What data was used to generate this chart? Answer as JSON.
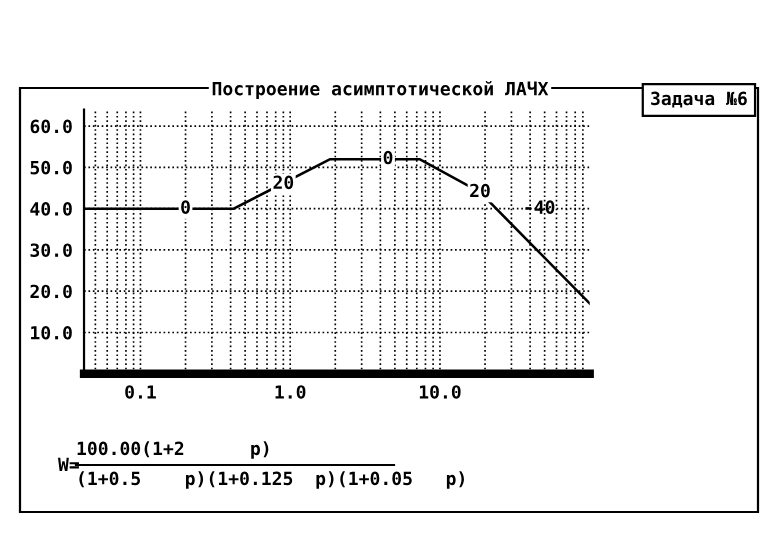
{
  "chart_data": {
    "type": "line",
    "title": "Построение асимптотической ЛАЧХ",
    "subtitle": "Задача №6",
    "x": [
      0.042,
      0.42,
      1.85,
      7.3,
      18.5,
      100
    ],
    "series": [
      {
        "color": "#000000",
        "values": [
          40,
          40,
          52,
          52,
          44,
          17
        ]
      }
    ],
    "log": "x",
    "xlim": [
      0.042,
      100
    ],
    "xticks": [
      {
        "value": 0.1,
        "label": "0.1"
      },
      {
        "value": 1,
        "label": "1.0"
      },
      {
        "value": 10,
        "label": "10.0"
      }
    ],
    "ylim": [
      0,
      64
    ],
    "yticks": [
      {
        "value": 10,
        "label": "10.0"
      },
      {
        "value": 20,
        "label": "20.0"
      },
      {
        "value": 30,
        "label": "30.0"
      },
      {
        "value": 40,
        "label": "40.0"
      },
      {
        "value": 50,
        "label": "50.0"
      },
      {
        "value": 60,
        "label": "60.0"
      }
    ],
    "grid": true,
    "marker": "none",
    "line_style": "solid",
    "annotations": [
      {
        "text": "0",
        "x": 0.2,
        "y": 40
      },
      {
        "text": "20",
        "x": 0.9,
        "y": 46
      },
      {
        "text": "0",
        "x": 4.5,
        "y": 52
      },
      {
        "text": "20",
        "x": 18.5,
        "y": 44
      },
      "-40",
      "W=",
      "100.00(1+2      p)",
      "(1+0.5    p)(1+0.125  p)(1+0.05   p)"
    ]
  }
}
